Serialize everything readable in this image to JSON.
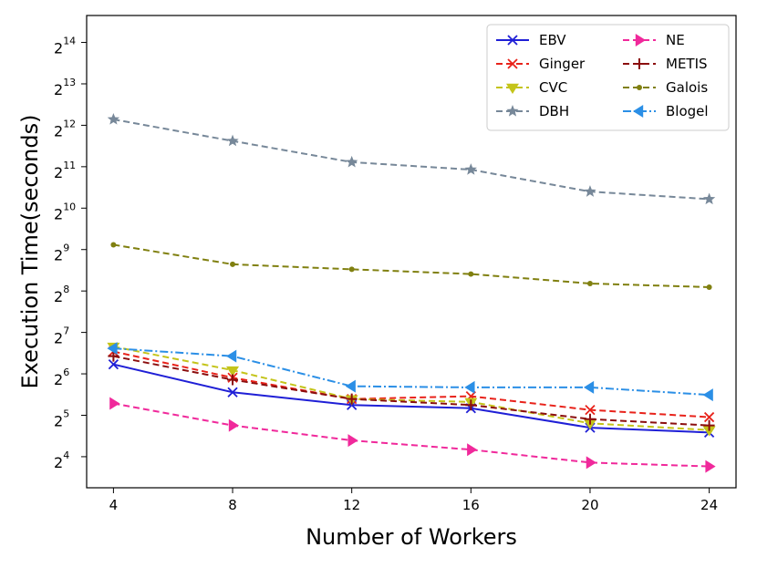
{
  "chart_data": {
    "type": "line",
    "title": "",
    "xlabel": "Number of Workers",
    "ylabel": "Execution Time(seconds)",
    "x": [
      4,
      8,
      12,
      16,
      20,
      24
    ],
    "x_ticks": [
      4,
      8,
      12,
      16,
      20,
      24
    ],
    "x_tick_labels": [
      "4",
      "8",
      "12",
      "16",
      "20",
      "24"
    ],
    "yscale": "log2",
    "ylim_exp": [
      3.25,
      14.65
    ],
    "y_tick_exps": [
      4,
      5,
      6,
      7,
      8,
      9,
      10,
      11,
      12,
      13,
      14
    ],
    "y_tick_base": "2",
    "y_tick_exp_labels": [
      "4",
      "5",
      "6",
      "7",
      "8",
      "9",
      "10",
      "11",
      "12",
      "13",
      "14"
    ],
    "legend_position": "top-right",
    "series": [
      {
        "name": "EBV",
        "color": "#1f1fd6",
        "dash": "solid",
        "marker": "x",
        "values": [
          75,
          47,
          38,
          36,
          26,
          24
        ]
      },
      {
        "name": "Ginger",
        "color": "#e8221a",
        "dash": "dashed",
        "marker": "x",
        "values": [
          93,
          60,
          42,
          44,
          35,
          31
        ]
      },
      {
        "name": "CVC",
        "color": "#c4c41a",
        "dash": "dashed",
        "marker": "triangle-down",
        "values": [
          101,
          68,
          42,
          40,
          28,
          25
        ]
      },
      {
        "name": "DBH",
        "color": "#778899",
        "dash": "dashed",
        "marker": "star",
        "values": [
          4520,
          3150,
          2210,
          1950,
          1350,
          1190
        ]
      },
      {
        "name": "NE",
        "color": "#f0299b",
        "dash": "dashed",
        "marker": "triangle-right",
        "values": [
          39,
          27,
          21,
          18,
          14.5,
          13.6
        ]
      },
      {
        "name": "METIS",
        "color": "#8b0e0e",
        "dash": "dashed",
        "marker": "plus",
        "values": [
          86,
          58,
          42,
          38,
          30,
          27
        ]
      },
      {
        "name": "Galois",
        "color": "#808010",
        "dash": "dashed",
        "marker": "dot",
        "values": [
          555,
          400,
          368,
          340,
          290,
          273
        ]
      },
      {
        "name": "Blogel",
        "color": "#2b8fe6",
        "dash": "dashdot",
        "marker": "triangle-left",
        "values": [
          98,
          86,
          52,
          51,
          51,
          45
        ]
      }
    ],
    "legend_order": [
      "EBV",
      "NE",
      "Ginger",
      "METIS",
      "CVC",
      "Galois",
      "DBH",
      "Blogel"
    ]
  }
}
